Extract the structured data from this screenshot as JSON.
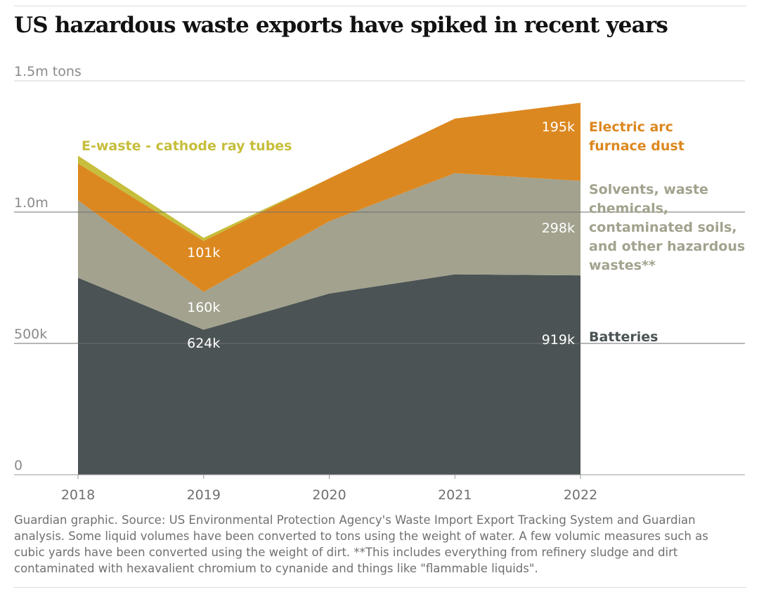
{
  "title": "US hazardous waste exports have spiked in recent years",
  "footnote": "Guardian graphic. Source: US Environmental Protection Agency's Waste Import Export Tracking System and Guardian analysis. Some liquid volumes have been converted to tons using the weight of water. A few volumic measures such as cubic yards have been converted using the weight of dirt. **This includes everything from refinery sludge and dirt contaminated with hexavalient chromium to cynanide and things like \"flammable liquids\".",
  "chart_data": {
    "type": "area",
    "stacked": true,
    "x": [
      2018,
      2019,
      2020,
      2021,
      2022
    ],
    "ylim": [
      0,
      1500000
    ],
    "yticks": [
      {
        "value": 0,
        "label": "0"
      },
      {
        "value": 500000,
        "label": "500k"
      },
      {
        "value": 1000000,
        "label": "1.0m"
      },
      {
        "value": 1500000,
        "label": "1.5m tons"
      }
    ],
    "xticks": [
      "2018",
      "2019",
      "2020",
      "2021",
      "2022"
    ],
    "grid": true,
    "series": [
      {
        "name": "Batteries",
        "color": "#4b5354",
        "values": [
          750000,
          552000,
          690000,
          763000,
          759000
        ]
      },
      {
        "name": "Solvents, waste chemicals, contaminated soils, and other hazardous wastes**",
        "color": "#a2a28e",
        "values": [
          295000,
          144000,
          275000,
          385000,
          360000
        ]
      },
      {
        "name": "Electric arc furnace dust",
        "color": "#dc8820",
        "values": [
          140000,
          194000,
          163000,
          208000,
          297000
        ]
      },
      {
        "name": "E-waste - cathode ray tubes",
        "color": "#c6be3c",
        "values": [
          30000,
          12000,
          0,
          0,
          0
        ]
      }
    ],
    "value_labels": [
      {
        "text": "624k",
        "color": "#ffffff"
      },
      {
        "text": "160k",
        "color": "#ffffff"
      },
      {
        "text": "101k",
        "color": "#ffffff"
      },
      {
        "text": "919k",
        "color": "#ffffff"
      },
      {
        "text": "298k",
        "color": "#ffffff"
      },
      {
        "text": "195k",
        "color": "#ffffff"
      }
    ],
    "series_labels": [
      {
        "lines": [
          "Electric arc",
          "furnace dust"
        ],
        "color": "#dc8820"
      },
      {
        "lines": [
          "Solvents, waste",
          "chemicals,",
          "contaminated soils,",
          "and other hazardous",
          "wastes**"
        ],
        "color": "#a2a28e"
      },
      {
        "lines": [
          "Batteries"
        ],
        "color": "#4b5354"
      },
      {
        "lines": [
          "E-waste - cathode ray tubes"
        ],
        "color": "#c6be3c"
      }
    ]
  }
}
